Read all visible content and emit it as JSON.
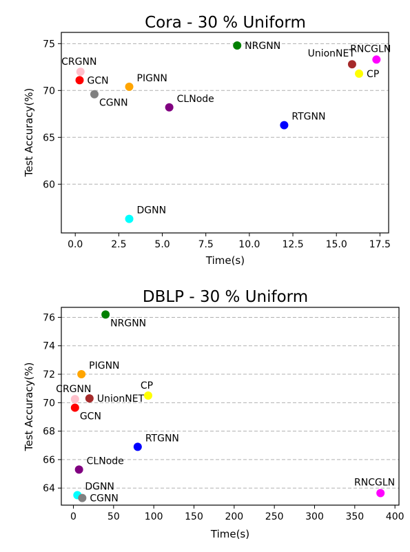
{
  "chart_data": [
    {
      "type": "scatter",
      "title": "Cora - 30 % Uniform",
      "xlabel": "Time(s)",
      "ylabel": "Test Accuracy(%)",
      "xlim": [
        -0.8,
        18.0
      ],
      "ylim": [
        54.8,
        76.2
      ],
      "xticks": [
        0.0,
        2.5,
        5.0,
        7.5,
        10.0,
        12.5,
        15.0,
        17.5
      ],
      "xtick_labels": [
        "0.0",
        "2.5",
        "5.0",
        "7.5",
        "10.0",
        "12.5",
        "15.0",
        "17.5"
      ],
      "yticks": [
        60,
        65,
        70,
        75
      ],
      "ytick_labels": [
        "60",
        "65",
        "70",
        "75"
      ],
      "grid": "y-dashed",
      "points": [
        {
          "label": "CRGNN",
          "x": 0.3,
          "y": 72.0,
          "color": "#ffc0cb",
          "label_pos": "above"
        },
        {
          "label": "GCN",
          "x": 0.25,
          "y": 71.1,
          "color": "#ff0000",
          "label_pos": "right"
        },
        {
          "label": "CGNN",
          "x": 1.1,
          "y": 69.6,
          "color": "#808080",
          "label_pos": "below-right"
        },
        {
          "label": "PIGNN",
          "x": 3.1,
          "y": 70.4,
          "color": "#ffa500",
          "label_pos": "above-right"
        },
        {
          "label": "CLNode",
          "x": 5.4,
          "y": 68.2,
          "color": "#800080",
          "label_pos": "above-right"
        },
        {
          "label": "NRGNN",
          "x": 9.3,
          "y": 74.8,
          "color": "#008000",
          "label_pos": "right"
        },
        {
          "label": "RTGNN",
          "x": 12.0,
          "y": 66.3,
          "color": "#0000ff",
          "label_pos": "above-right"
        },
        {
          "label": "UnionNET",
          "x": 15.9,
          "y": 72.8,
          "color": "#a52a2a",
          "label_pos": "above-left"
        },
        {
          "label": "RNCGLN",
          "x": 17.3,
          "y": 73.3,
          "color": "#ff00ff",
          "label_pos": "above-left"
        },
        {
          "label": "CP",
          "x": 16.3,
          "y": 71.8,
          "color": "#ffff00",
          "label_pos": "right"
        },
        {
          "label": "DGNN",
          "x": 3.1,
          "y": 56.3,
          "color": "#00ffff",
          "label_pos": "above-right"
        }
      ]
    },
    {
      "type": "scatter",
      "title": "DBLP - 30 % Uniform",
      "xlabel": "Time(s)",
      "ylabel": "Test Accuracy(%)",
      "xlim": [
        -15,
        405
      ],
      "ylim": [
        62.8,
        76.7
      ],
      "xticks": [
        0,
        50,
        100,
        150,
        200,
        250,
        300,
        350,
        400
      ],
      "xtick_labels": [
        "0",
        "50",
        "100",
        "150",
        "200",
        "250",
        "300",
        "350",
        "400"
      ],
      "yticks": [
        64,
        66,
        68,
        70,
        72,
        74,
        76
      ],
      "ytick_labels": [
        "64",
        "66",
        "68",
        "70",
        "72",
        "74",
        "76"
      ],
      "grid": "y-dashed",
      "points": [
        {
          "label": "NRGNN",
          "x": 40,
          "y": 76.2,
          "color": "#008000",
          "label_pos": "below-right"
        },
        {
          "label": "PIGNN",
          "x": 10,
          "y": 72.0,
          "color": "#ffa500",
          "label_pos": "above-right"
        },
        {
          "label": "CRGNN",
          "x": 2,
          "y": 70.25,
          "color": "#ffc0cb",
          "label_pos": "above"
        },
        {
          "label": "UnionNET",
          "x": 20,
          "y": 70.3,
          "color": "#a52a2a",
          "label_pos": "right"
        },
        {
          "label": "CP",
          "x": 93,
          "y": 70.5,
          "color": "#ffff00",
          "label_pos": "above"
        },
        {
          "label": "GCN",
          "x": 2,
          "y": 69.65,
          "color": "#ff0000",
          "label_pos": "below-right"
        },
        {
          "label": "RTGNN",
          "x": 80,
          "y": 66.9,
          "color": "#0000ff",
          "label_pos": "above-right"
        },
        {
          "label": "CLNode",
          "x": 7,
          "y": 65.3,
          "color": "#800080",
          "label_pos": "above-right"
        },
        {
          "label": "DGNN",
          "x": 5,
          "y": 63.5,
          "color": "#00ffff",
          "label_pos": "above-right"
        },
        {
          "label": "CGNN",
          "x": 11,
          "y": 63.3,
          "color": "#808080",
          "label_pos": "right"
        },
        {
          "label": "RNCGLN",
          "x": 382,
          "y": 63.65,
          "color": "#ff00ff",
          "label_pos": "above-left"
        }
      ]
    }
  ]
}
